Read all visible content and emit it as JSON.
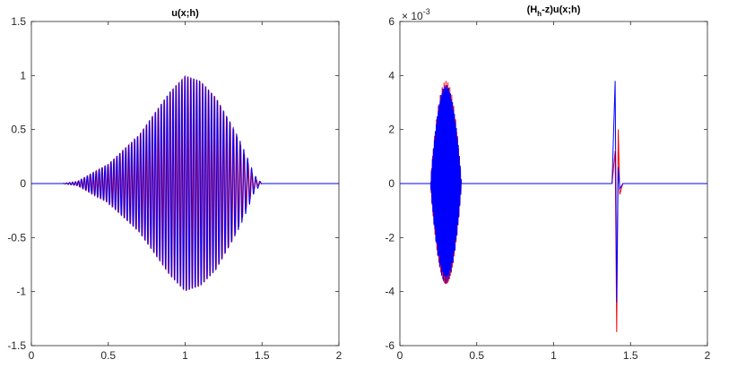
{
  "chart_data": [
    {
      "type": "line",
      "title": "u(x;h)",
      "xlabel": "",
      "ylabel": "",
      "xlim": [
        0,
        2
      ],
      "ylim": [
        -1.5,
        1.5
      ],
      "xticks": [
        0,
        0.5,
        1,
        1.5,
        2
      ],
      "xtick_labels": [
        "0",
        "0.5",
        "1",
        "1.5",
        "2"
      ],
      "yticks": [
        -1.5,
        -1,
        -0.5,
        0,
        0.5,
        1,
        1.5
      ],
      "ytick_labels": [
        "-1.5",
        "-1",
        "-0.5",
        "0",
        "0.5",
        "1",
        "1.5"
      ],
      "grid": false,
      "series": [
        {
          "color": "#ff0000",
          "envelope": {
            "x": [
              0.2,
              0.3,
              0.5,
              0.7,
              0.9,
              1.0,
              1.1,
              1.2,
              1.3,
              1.35,
              1.4,
              1.45,
              1.5
            ],
            "amp": [
              0.0,
              0.02,
              0.18,
              0.45,
              0.85,
              1.0,
              0.95,
              0.8,
              0.55,
              0.4,
              0.22,
              0.05,
              0.0
            ]
          }
        },
        {
          "color": "#0000ff",
          "envelope": {
            "x": [
              0.2,
              0.3,
              0.5,
              0.7,
              0.9,
              1.0,
              1.1,
              1.2,
              1.3,
              1.35,
              1.4,
              1.45,
              1.5
            ],
            "amp": [
              0.0,
              0.02,
              0.18,
              0.45,
              0.85,
              1.0,
              0.95,
              0.8,
              0.55,
              0.42,
              0.26,
              0.08,
              0.0
            ]
          }
        }
      ]
    },
    {
      "type": "line",
      "title_parts": {
        "a": "(H",
        "sub": "h",
        "b": "-z)u(x;h)"
      },
      "y_exponent": {
        "base": "× 10",
        "power": "-3"
      },
      "xlabel": "",
      "ylabel": "",
      "xlim": [
        0,
        2
      ],
      "ylim": [
        -6,
        6
      ],
      "xticks": [
        0,
        0.5,
        1,
        1.5,
        2
      ],
      "xtick_labels": [
        "0",
        "0.5",
        "1",
        "1.5",
        "2"
      ],
      "yticks": [
        -6,
        -4,
        -2,
        0,
        2,
        4,
        6
      ],
      "ytick_labels": [
        "-6",
        "-4",
        "-2",
        "0",
        "2",
        "4",
        "6"
      ],
      "grid": false,
      "series": [
        {
          "color": "#ff0000",
          "packet": {
            "x_range": [
              0.2,
              0.4
            ],
            "peak_amp": 3.8
          },
          "spike": {
            "x": [
              1.38,
              1.4,
              1.41,
              1.42,
              1.43,
              1.45
            ],
            "y": [
              0.0,
              1.2,
              -5.5,
              2.0,
              -0.4,
              0.0
            ]
          }
        },
        {
          "color": "#0000ff",
          "packet": {
            "x_range": [
              0.2,
              0.4
            ],
            "peak_amp": 3.7
          },
          "spike": {
            "x": [
              1.38,
              1.4,
              1.41,
              1.42,
              1.43,
              1.45
            ],
            "y": [
              0.0,
              3.8,
              -4.4,
              0.6,
              -0.2,
              0.0
            ]
          }
        }
      ]
    }
  ]
}
